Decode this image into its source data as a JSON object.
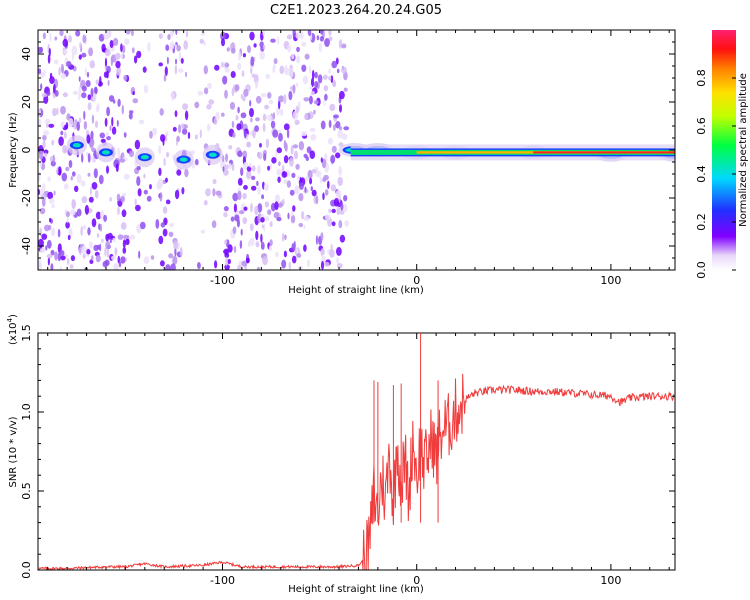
{
  "title": "C2E1.2023.264.20.24.G05",
  "colors": {
    "snr_line": "#f03c3c",
    "axis": "#000000"
  },
  "chart_data": [
    {
      "type": "heatmap",
      "title": "C2E1.2023.264.20.24.G05",
      "xlabel": "Height of straight line (km)",
      "ylabel": "Frequency (Hz)",
      "xlim": [
        -195,
        133
      ],
      "ylim": [
        -50,
        50
      ],
      "x_ticks": [
        -100,
        0,
        100
      ],
      "x_tick_labels": [
        "-100",
        "0",
        "100"
      ],
      "y_ticks": [
        -40,
        -20,
        0,
        20,
        40
      ],
      "y_tick_labels": [
        "-40",
        "-20",
        "0",
        "20",
        "40"
      ],
      "colorbar": {
        "label": "Normalized spectral amplitude",
        "range": [
          0,
          1
        ],
        "ticks": [
          0.0,
          0.2,
          0.4,
          0.6,
          0.8
        ],
        "tick_labels": [
          "0.0",
          "0.2",
          "0.4",
          "0.6",
          "0.8"
        ],
        "colormap": "rainbow (white-violet-blue-cyan-green-yellow-orange-red-magenta)"
      },
      "description_values": {
        "noise_region_x": [
          -195,
          -36
        ],
        "signal_ridge": [
          {
            "x": -175,
            "y": 2
          },
          {
            "x": -160,
            "y": -1
          },
          {
            "x": -140,
            "y": -3
          },
          {
            "x": -120,
            "y": -4
          },
          {
            "x": -105,
            "y": -2
          },
          {
            "x": -32,
            "y": 0
          },
          {
            "x": -20,
            "y": 0
          },
          {
            "x": 0,
            "y": -1
          },
          {
            "x": 20,
            "y": -1
          },
          {
            "x": 60,
            "y": -1
          },
          {
            "x": 100,
            "y": -2
          },
          {
            "x": 133,
            "y": -2
          }
        ]
      }
    },
    {
      "type": "line",
      "xlabel": "Height of straight line (km)",
      "ylabel": "SNR (10 * v/v)",
      "y_scale_label": "(x10",
      "y_scale_exponent": "4",
      "y_scale_suffix": ")",
      "xlim": [
        -195,
        133
      ],
      "ylim": [
        0,
        1.5
      ],
      "x_ticks": [
        -100,
        0,
        100
      ],
      "x_tick_labels": [
        "-100",
        "0",
        "100"
      ],
      "y_ticks": [
        0.0,
        0.5,
        1.0,
        1.5
      ],
      "y_tick_labels": [
        "0.0",
        "0.5",
        "1.0",
        "1.5"
      ],
      "series": [
        {
          "color": "#f03c3c",
          "x": [
            -195,
            -180,
            -160,
            -150,
            -140,
            -130,
            -110,
            -100,
            -90,
            -70,
            -50,
            -40,
            -30,
            -26,
            -24,
            -22,
            -20,
            -18,
            -16,
            -14,
            -12,
            -10,
            -8,
            -6,
            -4,
            -2,
            0,
            2,
            4,
            6,
            8,
            10,
            12,
            14,
            16,
            18,
            20,
            25,
            30,
            40,
            50,
            60,
            70,
            80,
            90,
            100,
            105,
            110,
            120,
            133
          ],
          "values": [
            0.01,
            0.01,
            0.02,
            0.02,
            0.04,
            0.02,
            0.03,
            0.05,
            0.02,
            0.02,
            0.02,
            0.02,
            0.03,
            0.08,
            0.2,
            0.5,
            0.35,
            0.6,
            0.45,
            0.75,
            0.4,
            0.8,
            0.55,
            0.7,
            0.45,
            0.85,
            0.6,
            0.8,
            0.65,
            0.75,
            0.85,
            0.7,
            0.85,
            0.9,
            0.9,
            0.95,
            1.0,
            1.08,
            1.12,
            1.14,
            1.14,
            1.13,
            1.13,
            1.12,
            1.11,
            1.1,
            1.06,
            1.09,
            1.1,
            1.1
          ]
        }
      ],
      "spikes": [
        {
          "x": -22,
          "y": 1.2
        },
        {
          "x": -20,
          "y": 1.19
        },
        {
          "x": -12,
          "y": 1.17
        },
        {
          "x": -8,
          "y": 1.18
        },
        {
          "x": 2,
          "y": 1.5
        },
        {
          "x": 11,
          "y": 1.2
        }
      ]
    }
  ]
}
